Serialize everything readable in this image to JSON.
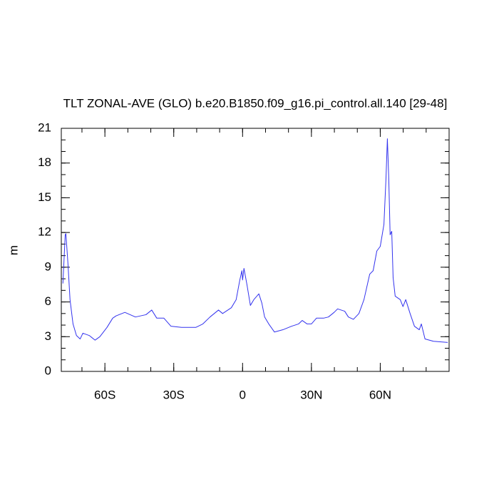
{
  "chart_data": {
    "type": "line",
    "title": "TLT ZONAL-AVE (GLO) b.e20.B1850.f09_g16.pi_control.all.140 [29-48]",
    "y_label": "m",
    "x": [
      -78.3,
      -77.3,
      -77,
      -76.1,
      -75.2,
      -73.9,
      -72.4,
      -70.8,
      -69.6,
      -66.8,
      -64.3,
      -62.2,
      -59.1,
      -56.6,
      -55.1,
      -51.3,
      -46.7,
      -42.1,
      -39.6,
      -37.4,
      -34.3,
      -31.2,
      -26.6,
      -20.4,
      -17.3,
      -14.2,
      -10.5,
      -8.7,
      -4.9,
      -2.8,
      -1.2,
      -0.3,
      0,
      0.6,
      1.9,
      3.4,
      4.9,
      7.1,
      8.4,
      9.6,
      11.4,
      13.9,
      17.6,
      21.3,
      24.4,
      26,
      28.1,
      30,
      32.2,
      35.3,
      37.4,
      39.9,
      41.4,
      44.5,
      46.1,
      48.3,
      50.7,
      52.9,
      55.4,
      56.9,
      58.5,
      60,
      61.6,
      62.5,
      63.1,
      63.7,
      64.3,
      65,
      65.6,
      66.5,
      68.7,
      69.9,
      71.1,
      73,
      74.9,
      77,
      77.9,
      79.5,
      83.2,
      89.4
    ],
    "series": [
      {
        "name": "TLT",
        "color": "#3333ee",
        "values": [
          7.6,
          11.8,
          11.9,
          9.3,
          6.2,
          4.1,
          3.1,
          2.8,
          3.3,
          3.1,
          2.7,
          3.0,
          3.8,
          4.6,
          4.8,
          5.1,
          4.7,
          4.9,
          5.3,
          4.6,
          4.6,
          3.9,
          3.8,
          3.8,
          4.1,
          4.7,
          5.3,
          5.0,
          5.5,
          6.2,
          7.9,
          8.7,
          7.9,
          8.9,
          7.5,
          5.7,
          6.2,
          6.7,
          5.9,
          4.7,
          4.1,
          3.4,
          3.6,
          3.9,
          4.1,
          4.4,
          4.1,
          4.1,
          4.6,
          4.6,
          4.7,
          5.1,
          5.4,
          5.2,
          4.7,
          4.5,
          5.0,
          6.2,
          8.4,
          8.7,
          10.4,
          10.8,
          12.7,
          16.7,
          20.1,
          16.7,
          11.8,
          12.1,
          8.1,
          6.5,
          6.2,
          5.6,
          6.2,
          5.0,
          3.9,
          3.6,
          4.1,
          2.8,
          2.6,
          2.5
        ]
      }
    ],
    "xlim": [
      -79,
      90
    ],
    "xticks": [
      {
        "value": -60,
        "label": "60S"
      },
      {
        "value": -30,
        "label": "30S"
      },
      0,
      {
        "value": 30,
        "label": "30N"
      },
      {
        "value": 60,
        "label": "60N"
      }
    ],
    "ylim": [
      0,
      21
    ],
    "yticks": [
      0,
      3,
      6,
      9,
      12,
      15,
      18,
      21
    ]
  }
}
